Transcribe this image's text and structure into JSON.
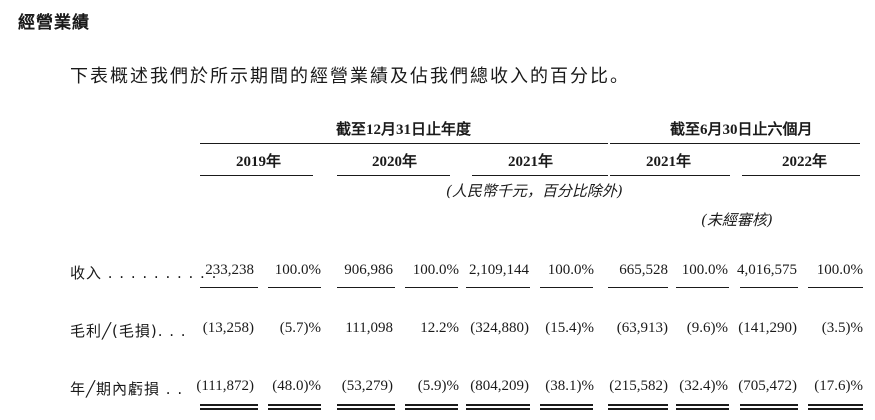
{
  "section_title": "經營業績",
  "intro": "下表概述我們於所示期間的經營業績及佔我們總收入的百分比。",
  "headers": {
    "group1": "截至12月31日止年度",
    "group2": "截至6月30日止六個月",
    "years": [
      "2019年",
      "2020年",
      "2021年",
      "2021年",
      "2022年"
    ],
    "unit_note": "(人民幣千元，百分比除外)",
    "unaudited_note": "(未經審核)"
  },
  "rows": [
    {
      "label": "收入 . . . . . . . . . .",
      "cells": [
        "233,238",
        "100.0%",
        "906,986",
        "100.0%",
        "2,109,144",
        "100.0%",
        "665,528",
        "100.0%",
        "4,016,575",
        "100.0%"
      ]
    },
    {
      "label": "毛利╱(毛損). . .",
      "cells": [
        "(13,258)",
        "(5.7)%",
        "111,098",
        "12.2%",
        "(324,880)",
        "(15.4)%",
        "(63,913)",
        "(9.6)%",
        "(141,290)",
        "(3.5)%"
      ]
    },
    {
      "label": "年╱期內虧損 . .",
      "cells": [
        "(111,872)",
        "(48.0)%",
        "(53,279)",
        "(5.9)%",
        "(804,209)",
        "(38.1)%",
        "(215,582)",
        "(32.4)%",
        "(705,472)",
        "(17.6)%"
      ]
    }
  ]
}
